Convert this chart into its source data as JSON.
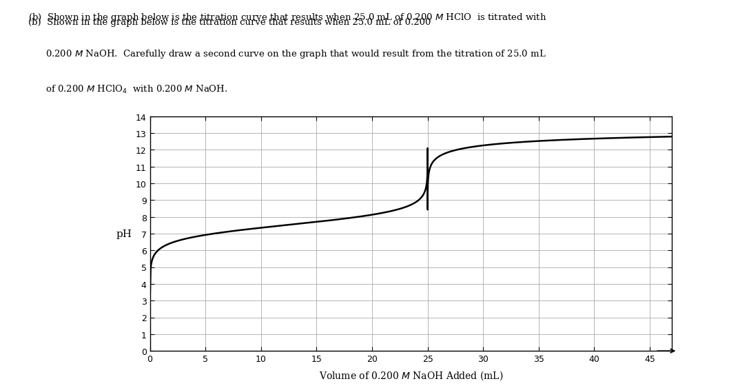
{
  "xlabel": "Volume of 0.200 M NaOH Added (mL)",
  "ylabel": "pH",
  "xlim": [
    0,
    47
  ],
  "ylim": [
    0,
    14
  ],
  "yticks": [
    0,
    1,
    2,
    3,
    4,
    5,
    6,
    7,
    8,
    9,
    10,
    11,
    12,
    13,
    14
  ],
  "xticks": [
    0,
    5,
    10,
    15,
    20,
    25,
    30,
    35,
    40,
    45
  ],
  "curve_color": "#000000",
  "curve_linewidth": 1.8,
  "background_color": "#ffffff",
  "grid_color": "#aaaaaa",
  "grid_linewidth": 0.6,
  "Ka": 3e-08,
  "V_acid_mL": 25.0,
  "C_acid": 0.2,
  "C_base": 0.2,
  "header_line1": "(b)  Shown in the graph below is the titration curve that results when 25.0 mL of 0.200 ",
  "header_line1b": "M",
  "header_line1c": " HClO  is titrated with",
  "header_line2": "      0.200 ",
  "header_line2b": "M",
  "header_line2c": " NaOH.  Carefully draw a second curve on the graph that would result from the titration of 25.0 mL",
  "header_line3": "      of 0.200 ",
  "header_line3b": "M",
  "header_line3c": " HClO",
  "header_line3d": "4",
  "header_line3e": "  with 0.200 ",
  "header_line3f": "M",
  "header_line3g": " NaOH."
}
